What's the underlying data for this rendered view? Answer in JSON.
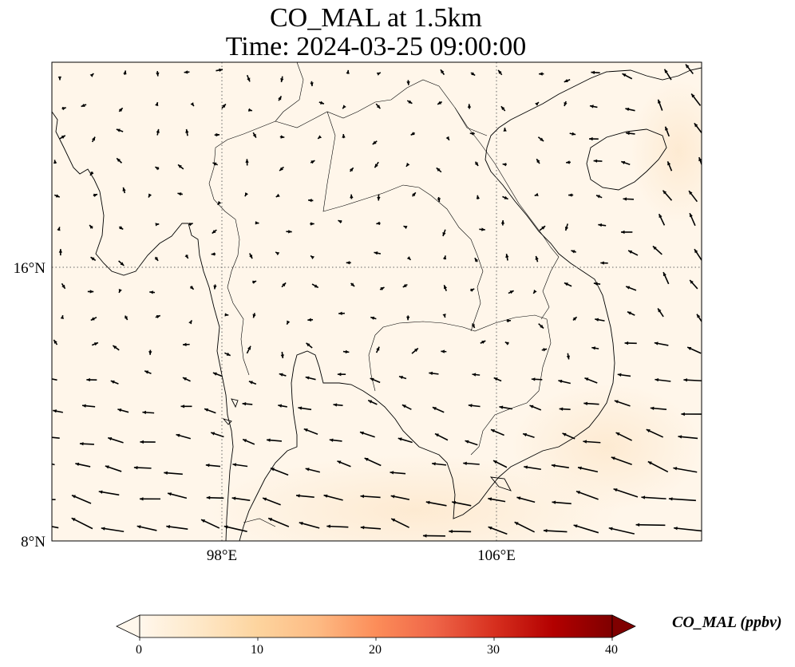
{
  "title": {
    "line1": "CO_MAL at 1.5km",
    "line2": "Time: 2024-03-25 09:00:00"
  },
  "map": {
    "projection": "PlateCarree",
    "lon_range": [
      92.5,
      114.0
    ],
    "lat_range": [
      8.0,
      19.0
    ],
    "field_name": "CO_MAL",
    "field_units": "ppbv",
    "gridlines": "dotted",
    "coastlines": true,
    "borders": true,
    "wind_vectors": true,
    "lon_ticks": [
      {
        "value": 98,
        "label": "98°E"
      },
      {
        "value": 106,
        "label": "106°E"
      }
    ],
    "lat_ticks": [
      {
        "value": 16,
        "label": "16°N"
      },
      {
        "value": 8,
        "label": "8°N"
      }
    ]
  },
  "colorbar": {
    "cmap": "OrRd",
    "vmin": 0,
    "vmax": 40,
    "extend": "both",
    "ticks": [
      "0",
      "10",
      "20",
      "30",
      "40"
    ],
    "label": "CO_MAL (ppbv)",
    "colors": [
      "#fff7ec",
      "#fee8c8",
      "#fdd49e",
      "#fdbb84",
      "#fc8d59",
      "#ef6548",
      "#d7301f",
      "#b30000",
      "#7f0000"
    ]
  }
}
